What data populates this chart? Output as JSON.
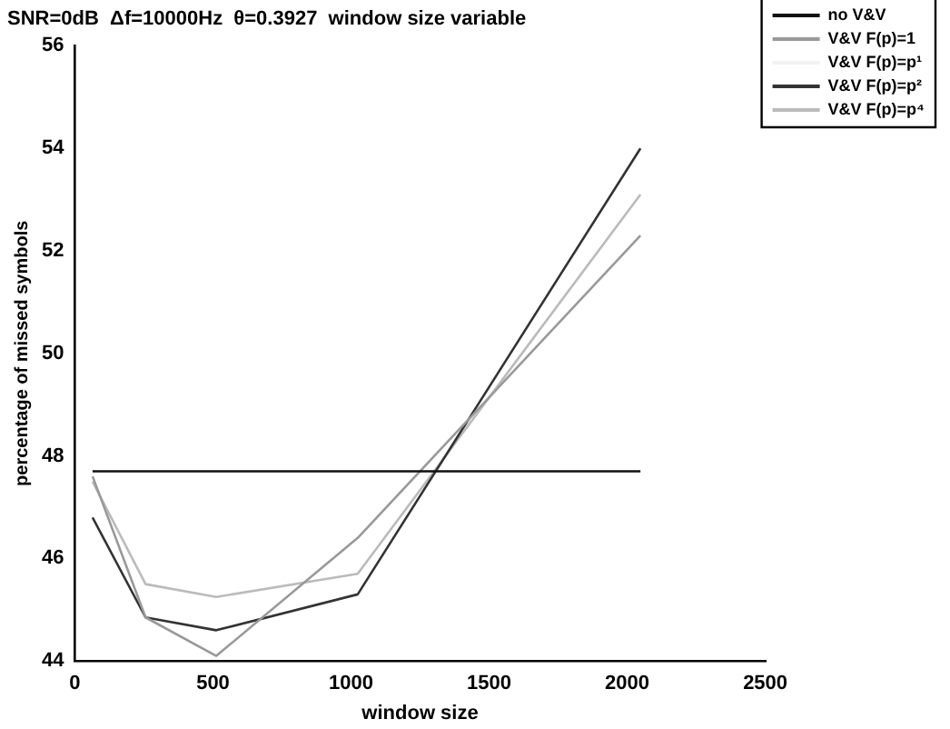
{
  "chart_data": {
    "type": "line",
    "title": "SNR=0dB  Δf=10000Hz  θ=0.3927  window size variable",
    "xlabel": "window size",
    "ylabel": "percentage of missed symbols",
    "x": [
      64,
      256,
      512,
      1024,
      2048
    ],
    "series": [
      {
        "name": "no V&V",
        "color": "#111111",
        "values": [
          47.7,
          47.7,
          47.7,
          47.7,
          47.7
        ]
      },
      {
        "name": "V&V F(p)=1",
        "color": "#999999",
        "values": [
          47.6,
          44.85,
          44.1,
          46.4,
          52.3
        ]
      },
      {
        "name": "V&V F(p)=p¹",
        "color": "#f2f2f2",
        "values": [
          null,
          null,
          null,
          null,
          null
        ]
      },
      {
        "name": "V&V F(p)=p²",
        "color": "#333333",
        "values": [
          46.8,
          44.85,
          44.6,
          45.3,
          54.0
        ]
      },
      {
        "name": "V&V F(p)=p⁴",
        "color": "#bbbbbb",
        "values": [
          47.5,
          45.5,
          45.25,
          45.7,
          53.1
        ]
      }
    ],
    "xlim": [
      0,
      2500
    ],
    "xticks": [
      0,
      500,
      1000,
      1500,
      2000,
      2500
    ],
    "ylim": [
      44,
      56
    ],
    "yticks": [
      44,
      46,
      48,
      50,
      52,
      54,
      56
    ],
    "grid": false,
    "legend": "top right",
    "marker": "none",
    "line_style": "solid"
  }
}
